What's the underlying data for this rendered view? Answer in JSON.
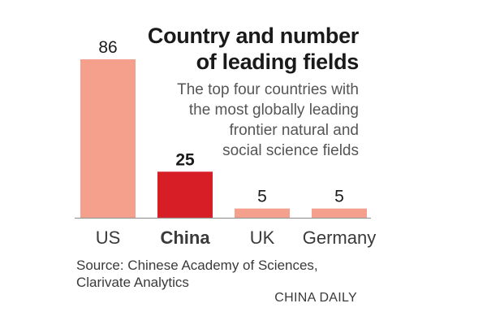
{
  "chart_data": {
    "type": "bar",
    "title": "Country and number of leading fields",
    "title_lines": [
      "Country and number",
      "of leading fields"
    ],
    "subtitle": "The top four countries with the most globally leading frontier natural and social science fields",
    "subtitle_lines": [
      "The top four countries with",
      "the most globally leading",
      "frontier natural and",
      "social science fields"
    ],
    "categories": [
      "US",
      "China",
      "UK",
      "Germany"
    ],
    "values": [
      86,
      25,
      5,
      5
    ],
    "highlight": "China",
    "ylim": [
      0,
      86
    ],
    "grid": false,
    "legend": "none",
    "colors": {
      "default": "#f4a08c",
      "highlight": "#d71e26",
      "baseline": "#999999"
    }
  },
  "source": {
    "lines": [
      "Source:  Chinese Academy of Sciences,",
      "Clarivate Analytics"
    ]
  },
  "credit": "CHINA DAILY"
}
